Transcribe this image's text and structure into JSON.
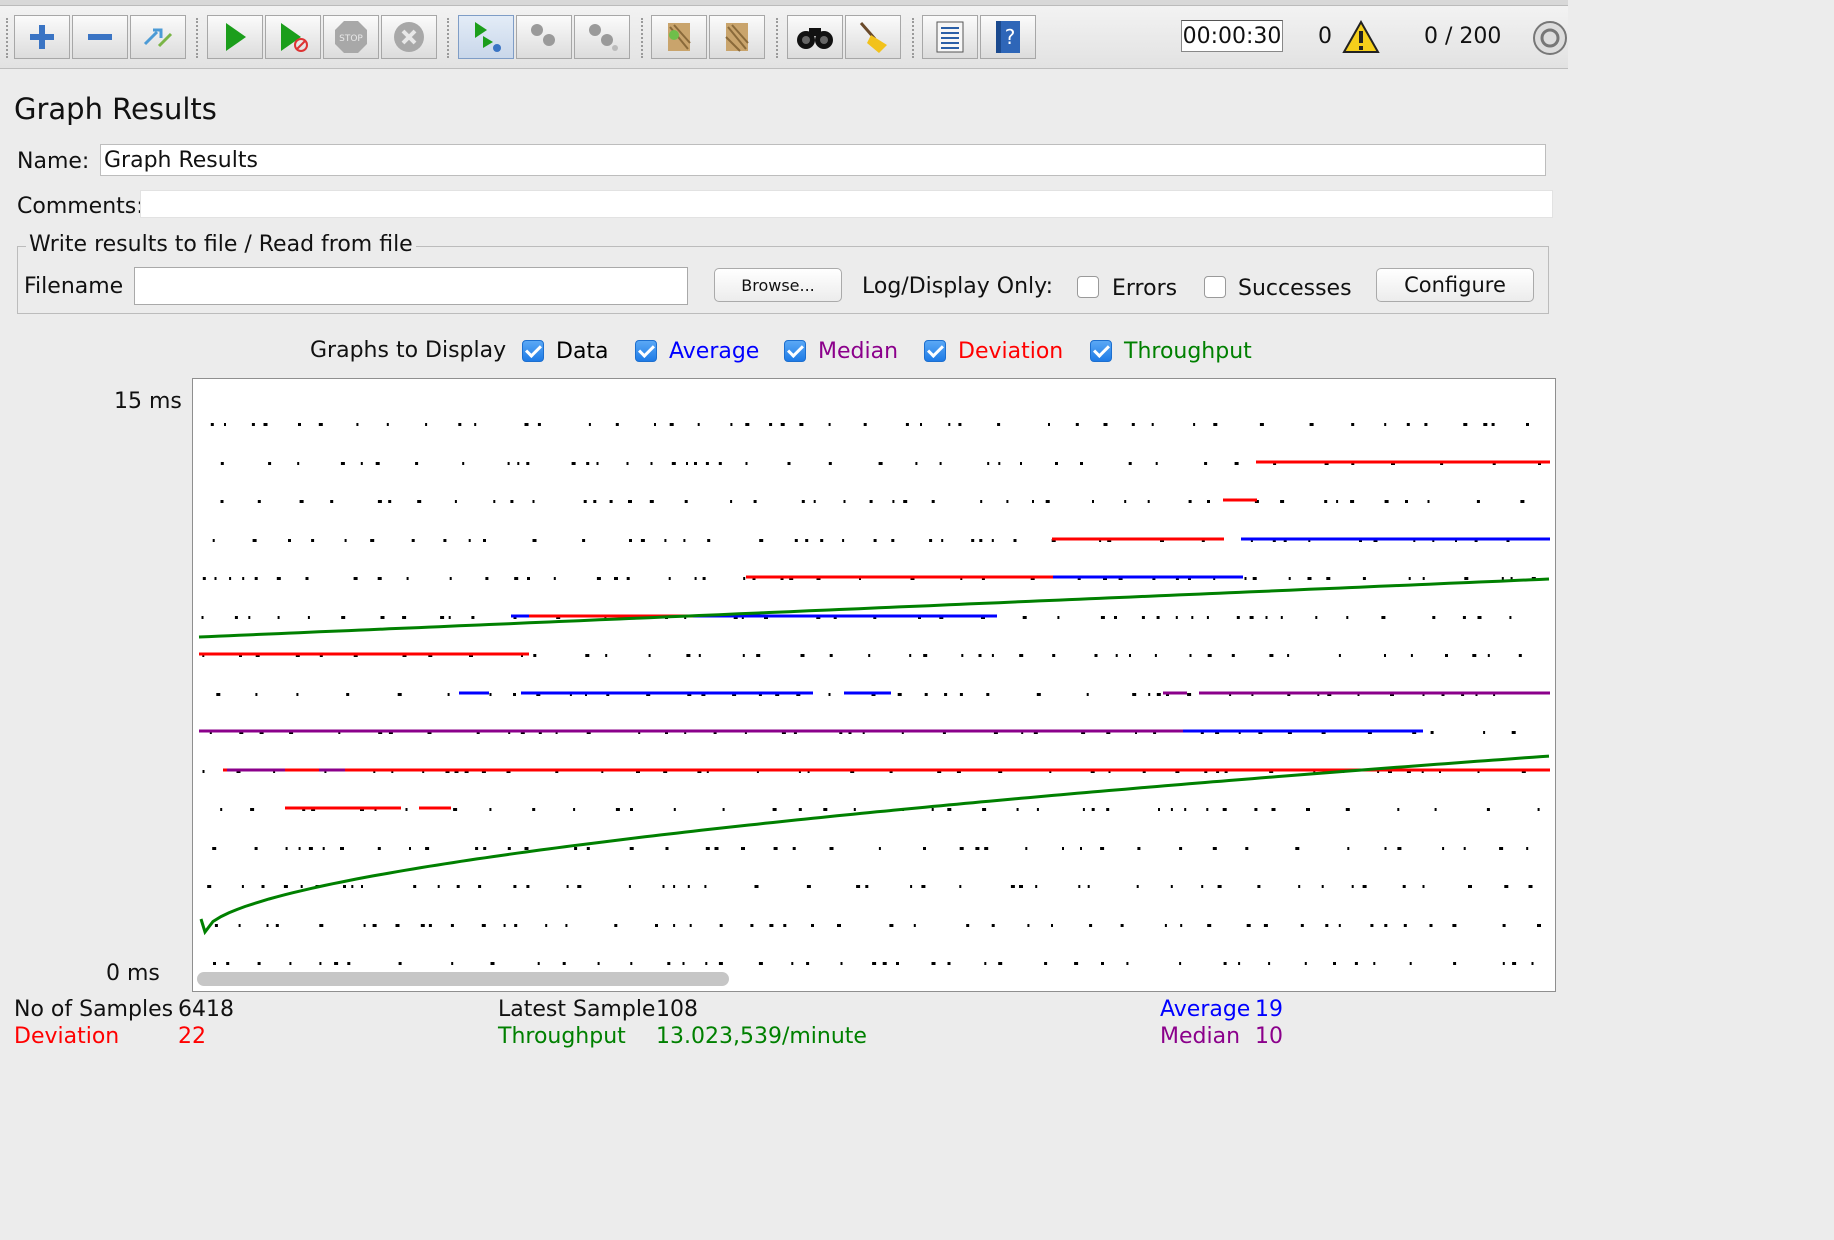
{
  "toolbar": {
    "timer": "00:00:30",
    "warning_count": "0",
    "threads": "0 / 200",
    "buttons": [
      "add",
      "remove",
      "toggle",
      "start",
      "start-no-pauses",
      "stop",
      "shutdown",
      "remote-start",
      "remote-stop",
      "remote-shutdown",
      "clear",
      "clear-all",
      "search",
      "reset-search",
      "function-helper",
      "help"
    ]
  },
  "panel": {
    "title": "Graph Results",
    "name_label": "Name:",
    "name_value": "Graph Results",
    "comments_label": "Comments:",
    "comments_value": ""
  },
  "file": {
    "legend": "Write results to file / Read from file",
    "filename_label": "Filename",
    "filename_value": "",
    "browse_label": "Browse...",
    "log_display_label": "Log/Display Only:",
    "errors_label": "Errors",
    "errors_checked": false,
    "successes_label": "Successes",
    "successes_checked": false,
    "configure_label": "Configure"
  },
  "graphs": {
    "label": "Graphs to Display",
    "options": [
      {
        "label": "Data",
        "checked": true,
        "color": "#000000"
      },
      {
        "label": "Average",
        "checked": true,
        "color": "#0000ff"
      },
      {
        "label": "Median",
        "checked": true,
        "color": "#8b008b"
      },
      {
        "label": "Deviation",
        "checked": true,
        "color": "#ff0000"
      },
      {
        "label": "Throughput",
        "checked": true,
        "color": "#008000"
      }
    ]
  },
  "chart_data": {
    "type": "line",
    "y_max_label": "15  ms",
    "y_min_label": "0  ms",
    "ylim": [
      0,
      15
    ],
    "series": [
      {
        "name": "Average",
        "color": "#0000ff"
      },
      {
        "name": "Median",
        "color": "#8b008b"
      },
      {
        "name": "Deviation",
        "color": "#ff0000"
      },
      {
        "name": "Throughput",
        "color": "#008000"
      }
    ]
  },
  "stats": {
    "samples_label": "No of Samples",
    "samples_value": "6418",
    "latest_label": "Latest Sample",
    "latest_value": "108",
    "average_label": "Average",
    "average_value": "19",
    "deviation_label": "Deviation",
    "deviation_value": "22",
    "throughput_label": "Throughput",
    "throughput_value": "13.023,539/minute",
    "median_label": "Median",
    "median_value": "10"
  }
}
